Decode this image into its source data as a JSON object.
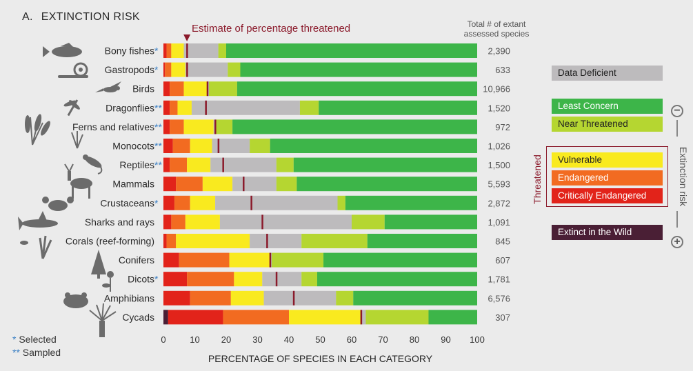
{
  "header": {
    "panel_letter": "A.",
    "panel_title": "EXTINCTION RISK",
    "estimate_label": "Estimate of percentage threatened",
    "total_header_line1": "Total # of extant",
    "total_header_line2": "assessed species"
  },
  "footnotes": {
    "selected_star": "*",
    "selected_label": "Selected",
    "sampled_star": "**",
    "sampled_label": "Sampled"
  },
  "legend": {
    "data_deficient": "Data Deficient",
    "least_concern": "Least Concern",
    "near_threatened": "Near Threatened",
    "vulnerable": "Vulnerable",
    "endangered": "Endangered",
    "critically_endangered": "Critically Endangered",
    "extinct_in_wild": "Extinct in the Wild",
    "threatened": "Threatened",
    "extinction_risk": "Extinction risk",
    "minus": "−",
    "plus": "+"
  },
  "colors": {
    "extinct_in_wild": "#4a1f35",
    "critically_endangered": "#e2231a",
    "endangered": "#f26b21",
    "vulnerable": "#f9ea1f",
    "near_threatened": "#b5d631",
    "least_concern": "#3db549",
    "data_deficient": "#bdbbbd",
    "estimate_marker": "#8b1a2b",
    "selected_star": "#3a7fc4",
    "background": "#ebebeb"
  },
  "chart_data": {
    "type": "bar",
    "orientation": "horizontal-stacked",
    "title": "",
    "xlabel": "PERCENTAGE  OF SPECIES IN EACH CATEGORY",
    "ylabel": "",
    "xlim": [
      0,
      100
    ],
    "xticks": [
      0,
      10,
      20,
      30,
      40,
      50,
      60,
      70,
      80,
      90,
      100
    ],
    "segment_order": [
      "Extinct in the Wild",
      "Critically Endangered",
      "Endangered",
      "Vulnerable",
      "Data Deficient",
      "Near Threatened",
      "Least Concern"
    ],
    "categories": [
      {
        "label": "Bony fishes",
        "star": "*",
        "total": "2,390",
        "EW": 0,
        "CR": 1,
        "EN": 1.5,
        "VU": 4,
        "DD": 11,
        "NT": 2.5,
        "LC": 80,
        "estimate": 7.5
      },
      {
        "label": "Gastropods",
        "star": "*",
        "total": "633",
        "EW": 0,
        "CR": 0.5,
        "EN": 2,
        "VU": 4.5,
        "DD": 13.5,
        "NT": 4,
        "LC": 75.5,
        "estimate": 7.5
      },
      {
        "label": "Birds",
        "star": "",
        "total": "10,966",
        "EW": 0,
        "CR": 2,
        "EN": 4.5,
        "VU": 7.5,
        "DD": 0.5,
        "NT": 9,
        "LC": 76.5,
        "estimate": 14
      },
      {
        "label": "Dragonflies",
        "star": "**",
        "total": "1,520",
        "EW": 0,
        "CR": 2,
        "EN": 2.5,
        "VU": 4.5,
        "DD": 34.5,
        "NT": 6,
        "LC": 50.5,
        "estimate": 13.5
      },
      {
        "label": "Ferns and relatives",
        "star": "**",
        "total": "972",
        "EW": 0,
        "CR": 2,
        "EN": 4.5,
        "VU": 9.5,
        "DD": 0.5,
        "NT": 5.5,
        "LC": 78,
        "estimate": 16.5
      },
      {
        "label": "Monocots",
        "star": "**",
        "total": "1,026",
        "EW": 0,
        "CR": 3,
        "EN": 5.5,
        "VU": 7,
        "DD": 12,
        "NT": 6.5,
        "LC": 66,
        "estimate": 17.5
      },
      {
        "label": "Reptiles",
        "star": "**",
        "total": "1,500",
        "EW": 0,
        "CR": 2,
        "EN": 5.5,
        "VU": 7.5,
        "DD": 21,
        "NT": 5.5,
        "LC": 58.5,
        "estimate": 19
      },
      {
        "label": "Mammals",
        "star": "",
        "total": "5,593",
        "EW": 0,
        "CR": 4,
        "EN": 8.5,
        "VU": 9.5,
        "DD": 14,
        "NT": 6.5,
        "LC": 57.5,
        "estimate": 25.5
      },
      {
        "label": "Crustaceans",
        "star": "*",
        "total": "2,872",
        "EW": 0,
        "CR": 3.5,
        "EN": 5,
        "VU": 8,
        "DD": 39,
        "NT": 2.5,
        "LC": 42,
        "estimate": 28
      },
      {
        "label": "Sharks and rays",
        "star": "",
        "total": "1,091",
        "EW": 0,
        "CR": 2.5,
        "EN": 4.5,
        "VU": 11,
        "DD": 42,
        "NT": 10.5,
        "LC": 29.5,
        "estimate": 31.5
      },
      {
        "label": "Corals (reef-forming)",
        "star": "",
        "total": "845",
        "EW": 0,
        "CR": 1,
        "EN": 3,
        "VU": 23.5,
        "DD": 16.5,
        "NT": 21,
        "LC": 35,
        "estimate": 33
      },
      {
        "label": "Conifers",
        "star": "",
        "total": "607",
        "EW": 0,
        "CR": 5,
        "EN": 16,
        "VU": 13,
        "DD": 0.5,
        "NT": 16.5,
        "LC": 49,
        "estimate": 34
      },
      {
        "label": "Dicots",
        "star": "*",
        "total": "1,781",
        "EW": 0,
        "CR": 7.5,
        "EN": 15,
        "VU": 9,
        "DD": 12.5,
        "NT": 5,
        "LC": 51,
        "estimate": 36
      },
      {
        "label": "Amphibians",
        "star": "",
        "total": "6,576",
        "EW": 0,
        "CR": 8.5,
        "EN": 13,
        "VU": 10.5,
        "DD": 23,
        "NT": 5.5,
        "LC": 39.5,
        "estimate": 41.5
      },
      {
        "label": "Cycads",
        "star": "",
        "total": "307",
        "EW": 1.5,
        "CR": 17.5,
        "EN": 21,
        "VU": 23,
        "DD": 1.5,
        "NT": 20,
        "LC": 15.5,
        "estimate": 63
      }
    ]
  }
}
